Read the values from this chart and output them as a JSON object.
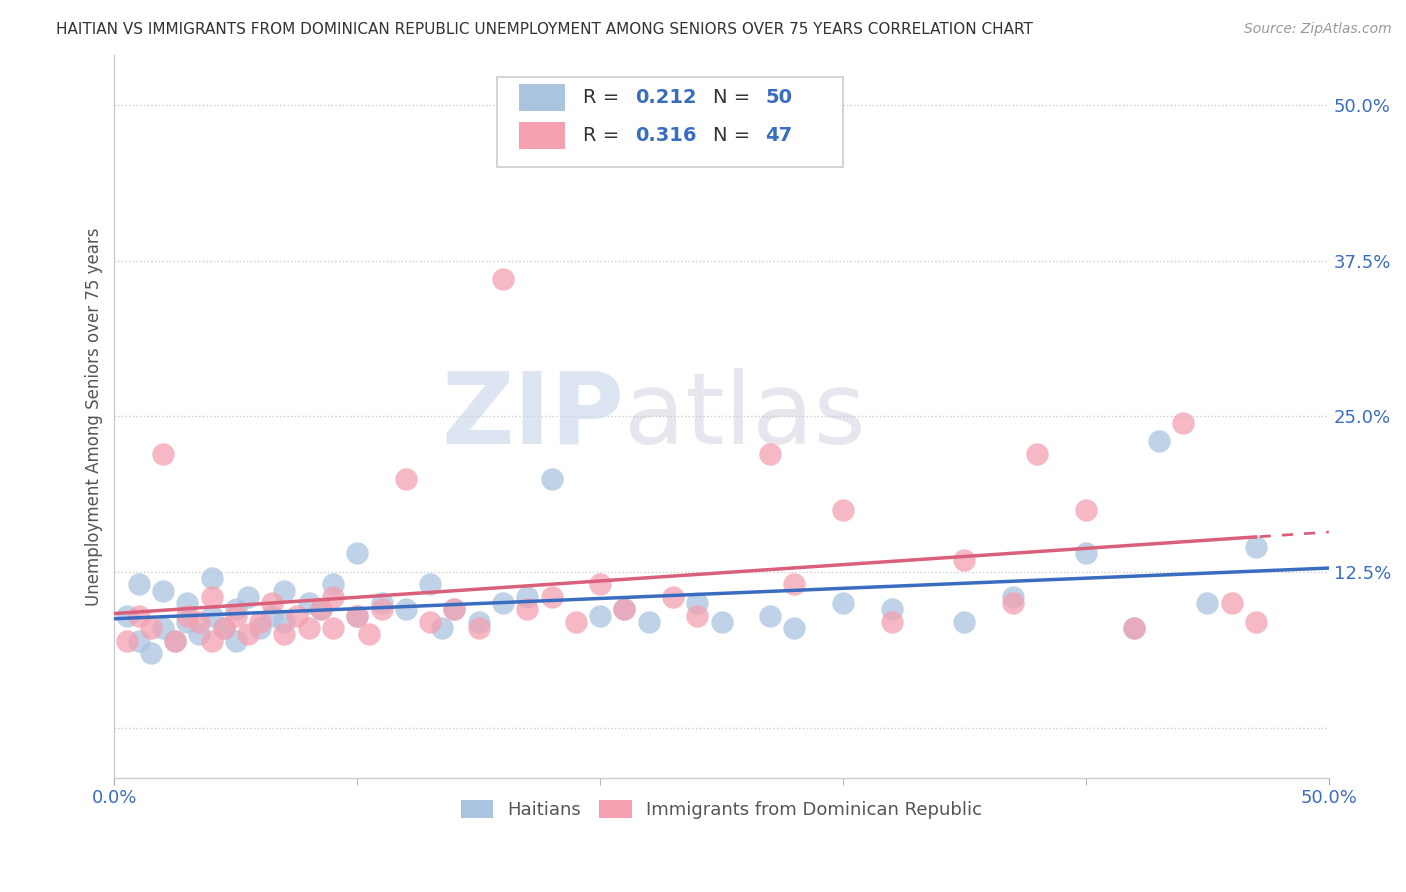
{
  "title": "HAITIAN VS IMMIGRANTS FROM DOMINICAN REPUBLIC UNEMPLOYMENT AMONG SENIORS OVER 75 YEARS CORRELATION CHART",
  "source": "Source: ZipAtlas.com",
  "ylabel": "Unemployment Among Seniors over 75 years",
  "xlim": [
    0.0,
    0.5
  ],
  "ylim": [
    -0.04,
    0.54
  ],
  "ytick_vals": [
    0.0,
    0.125,
    0.25,
    0.375,
    0.5
  ],
  "ytick_labels": [
    "",
    "12.5%",
    "25.0%",
    "37.5%",
    "50.0%"
  ],
  "xtick_vals": [
    0.0,
    0.5
  ],
  "xtick_labels": [
    "0.0%",
    "50.0%"
  ],
  "r_haitian": 0.212,
  "n_haitian": 50,
  "r_dominican": 0.316,
  "n_dominican": 47,
  "haitian_color": "#aac4e0",
  "dominican_color": "#f4a0b0",
  "haitian_line_color": "#3a6dbf",
  "dominican_line_color": "#d95f7a",
  "watermark_zip": "ZIP",
  "watermark_atlas": "atlas",
  "legend_labels": [
    "Haitians",
    "Immigrants from Dominican Republic"
  ],
  "haitian_x": [
    0.005,
    0.01,
    0.01,
    0.015,
    0.02,
    0.02,
    0.025,
    0.03,
    0.03,
    0.035,
    0.04,
    0.04,
    0.045,
    0.05,
    0.05,
    0.055,
    0.06,
    0.065,
    0.07,
    0.07,
    0.08,
    0.085,
    0.09,
    0.1,
    0.1,
    0.11,
    0.12,
    0.13,
    0.135,
    0.14,
    0.15,
    0.16,
    0.17,
    0.18,
    0.2,
    0.21,
    0.22,
    0.24,
    0.25,
    0.27,
    0.28,
    0.3,
    0.32,
    0.35,
    0.37,
    0.4,
    0.42,
    0.43,
    0.45,
    0.47
  ],
  "haitian_y": [
    0.09,
    0.07,
    0.115,
    0.06,
    0.08,
    0.11,
    0.07,
    0.085,
    0.1,
    0.075,
    0.09,
    0.12,
    0.08,
    0.07,
    0.095,
    0.105,
    0.08,
    0.09,
    0.085,
    0.11,
    0.1,
    0.095,
    0.115,
    0.09,
    0.14,
    0.1,
    0.095,
    0.115,
    0.08,
    0.095,
    0.085,
    0.1,
    0.105,
    0.2,
    0.09,
    0.095,
    0.085,
    0.1,
    0.085,
    0.09,
    0.08,
    0.1,
    0.095,
    0.085,
    0.105,
    0.14,
    0.08,
    0.23,
    0.1,
    0.145
  ],
  "dominican_x": [
    0.005,
    0.01,
    0.015,
    0.02,
    0.025,
    0.03,
    0.035,
    0.04,
    0.04,
    0.045,
    0.05,
    0.055,
    0.06,
    0.065,
    0.07,
    0.075,
    0.08,
    0.085,
    0.09,
    0.09,
    0.1,
    0.105,
    0.11,
    0.12,
    0.13,
    0.14,
    0.15,
    0.16,
    0.17,
    0.18,
    0.19,
    0.2,
    0.21,
    0.23,
    0.24,
    0.27,
    0.28,
    0.3,
    0.32,
    0.35,
    0.37,
    0.38,
    0.4,
    0.42,
    0.44,
    0.46,
    0.47
  ],
  "dominican_y": [
    0.07,
    0.09,
    0.08,
    0.22,
    0.07,
    0.09,
    0.085,
    0.07,
    0.105,
    0.08,
    0.09,
    0.075,
    0.085,
    0.1,
    0.075,
    0.09,
    0.08,
    0.095,
    0.08,
    0.105,
    0.09,
    0.075,
    0.095,
    0.2,
    0.085,
    0.095,
    0.08,
    0.36,
    0.095,
    0.105,
    0.085,
    0.115,
    0.095,
    0.105,
    0.09,
    0.22,
    0.115,
    0.175,
    0.085,
    0.135,
    0.1,
    0.22,
    0.175,
    0.08,
    0.245,
    0.1,
    0.085
  ]
}
